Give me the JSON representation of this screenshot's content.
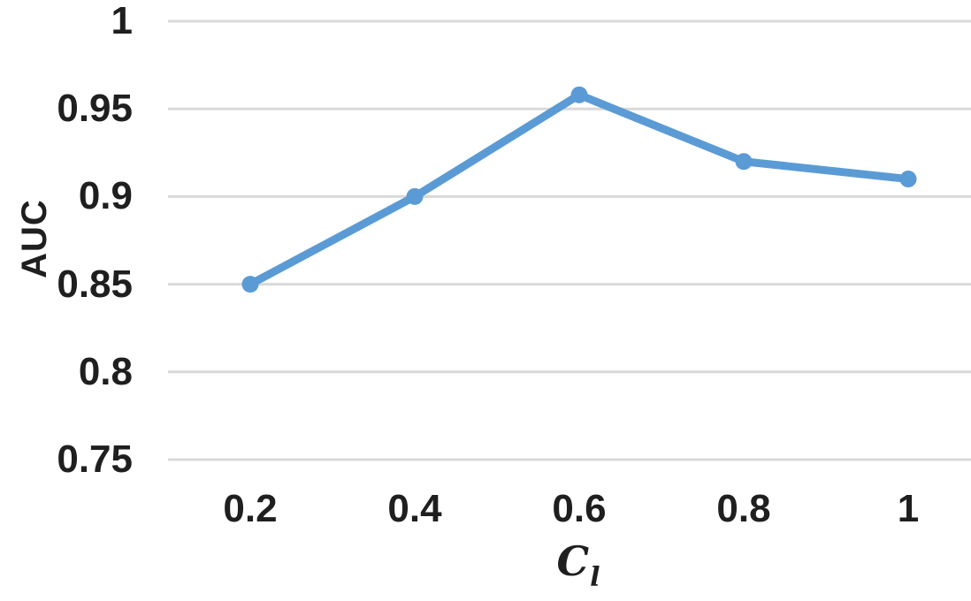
{
  "chart_data": {
    "type": "line",
    "title": "",
    "categories": [
      "0.2",
      "0.4",
      "0.6",
      "0.8",
      "1"
    ],
    "x": [
      0.2,
      0.4,
      0.6,
      0.8,
      1
    ],
    "series": [
      {
        "name": "AUC",
        "values": [
          0.85,
          0.9,
          0.958,
          0.92,
          0.91
        ]
      }
    ],
    "xlabel": "C_l",
    "xlabel_base": "C",
    "xlabel_subscript": "l",
    "ylabel": "AUC",
    "ylim": [
      0.75,
      1.0
    ],
    "ytick_step": 0.05,
    "yticks": [
      "1",
      "0.95",
      "0.9",
      "0.85",
      "0.8",
      "0.75"
    ],
    "ytick_values": [
      1,
      0.95,
      0.9,
      0.85,
      0.8,
      0.75
    ],
    "grid": "horizontal",
    "legend": "none",
    "colors": {
      "line": "#5B9BD5",
      "marker": "#5B9BD5",
      "gridline": "#D9D9D9",
      "text": "#1F1F1F",
      "background": "#FFFFFF"
    }
  }
}
